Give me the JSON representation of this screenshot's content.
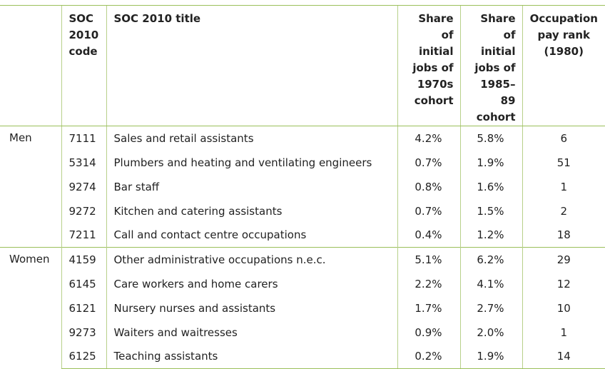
{
  "table": {
    "headers": {
      "group": "",
      "code": "SOC 2010 code",
      "title": "SOC 2010 title",
      "share_1970s": "Share of initial jobs of 1970s cohort",
      "share_1985_89": "Share of initial jobs of 1985–89 cohort",
      "pay_rank": "Occupation pay rank (1980)"
    },
    "groups": [
      {
        "label": "Men",
        "rows": [
          {
            "code": "7111",
            "title": "Sales and retail assistants",
            "share_1970s": "4.2%",
            "share_1985_89": "5.8%",
            "pay_rank": "6"
          },
          {
            "code": "5314",
            "title": "Plumbers and heating and ventilating engineers",
            "share_1970s": "0.7%",
            "share_1985_89": "1.9%",
            "pay_rank": "51"
          },
          {
            "code": "9274",
            "title": "Bar staff",
            "share_1970s": "0.8%",
            "share_1985_89": "1.6%",
            "pay_rank": "1"
          },
          {
            "code": "9272",
            "title": "Kitchen and catering assistants",
            "share_1970s": "0.7%",
            "share_1985_89": "1.5%",
            "pay_rank": "2"
          },
          {
            "code": "7211",
            "title": "Call and contact centre occupations",
            "share_1970s": "0.4%",
            "share_1985_89": "1.2%",
            "pay_rank": "18"
          }
        ]
      },
      {
        "label": "Women",
        "rows": [
          {
            "code": "4159",
            "title": "Other administrative occupations n.e.c.",
            "share_1970s": "5.1%",
            "share_1985_89": "6.2%",
            "pay_rank": "29"
          },
          {
            "code": "6145",
            "title": "Care workers and home carers",
            "share_1970s": "2.2%",
            "share_1985_89": "4.1%",
            "pay_rank": "12"
          },
          {
            "code": "6121",
            "title": "Nursery nurses and assistants",
            "share_1970s": "1.7%",
            "share_1985_89": "2.7%",
            "pay_rank": "10"
          },
          {
            "code": "9273",
            "title": "Waiters and waitresses",
            "share_1970s": "0.9%",
            "share_1985_89": "2.0%",
            "pay_rank": "1"
          },
          {
            "code": "6125",
            "title": "Teaching assistants",
            "share_1970s": "0.2%",
            "share_1985_89": "1.9%",
            "pay_rank": "14"
          }
        ]
      }
    ]
  }
}
